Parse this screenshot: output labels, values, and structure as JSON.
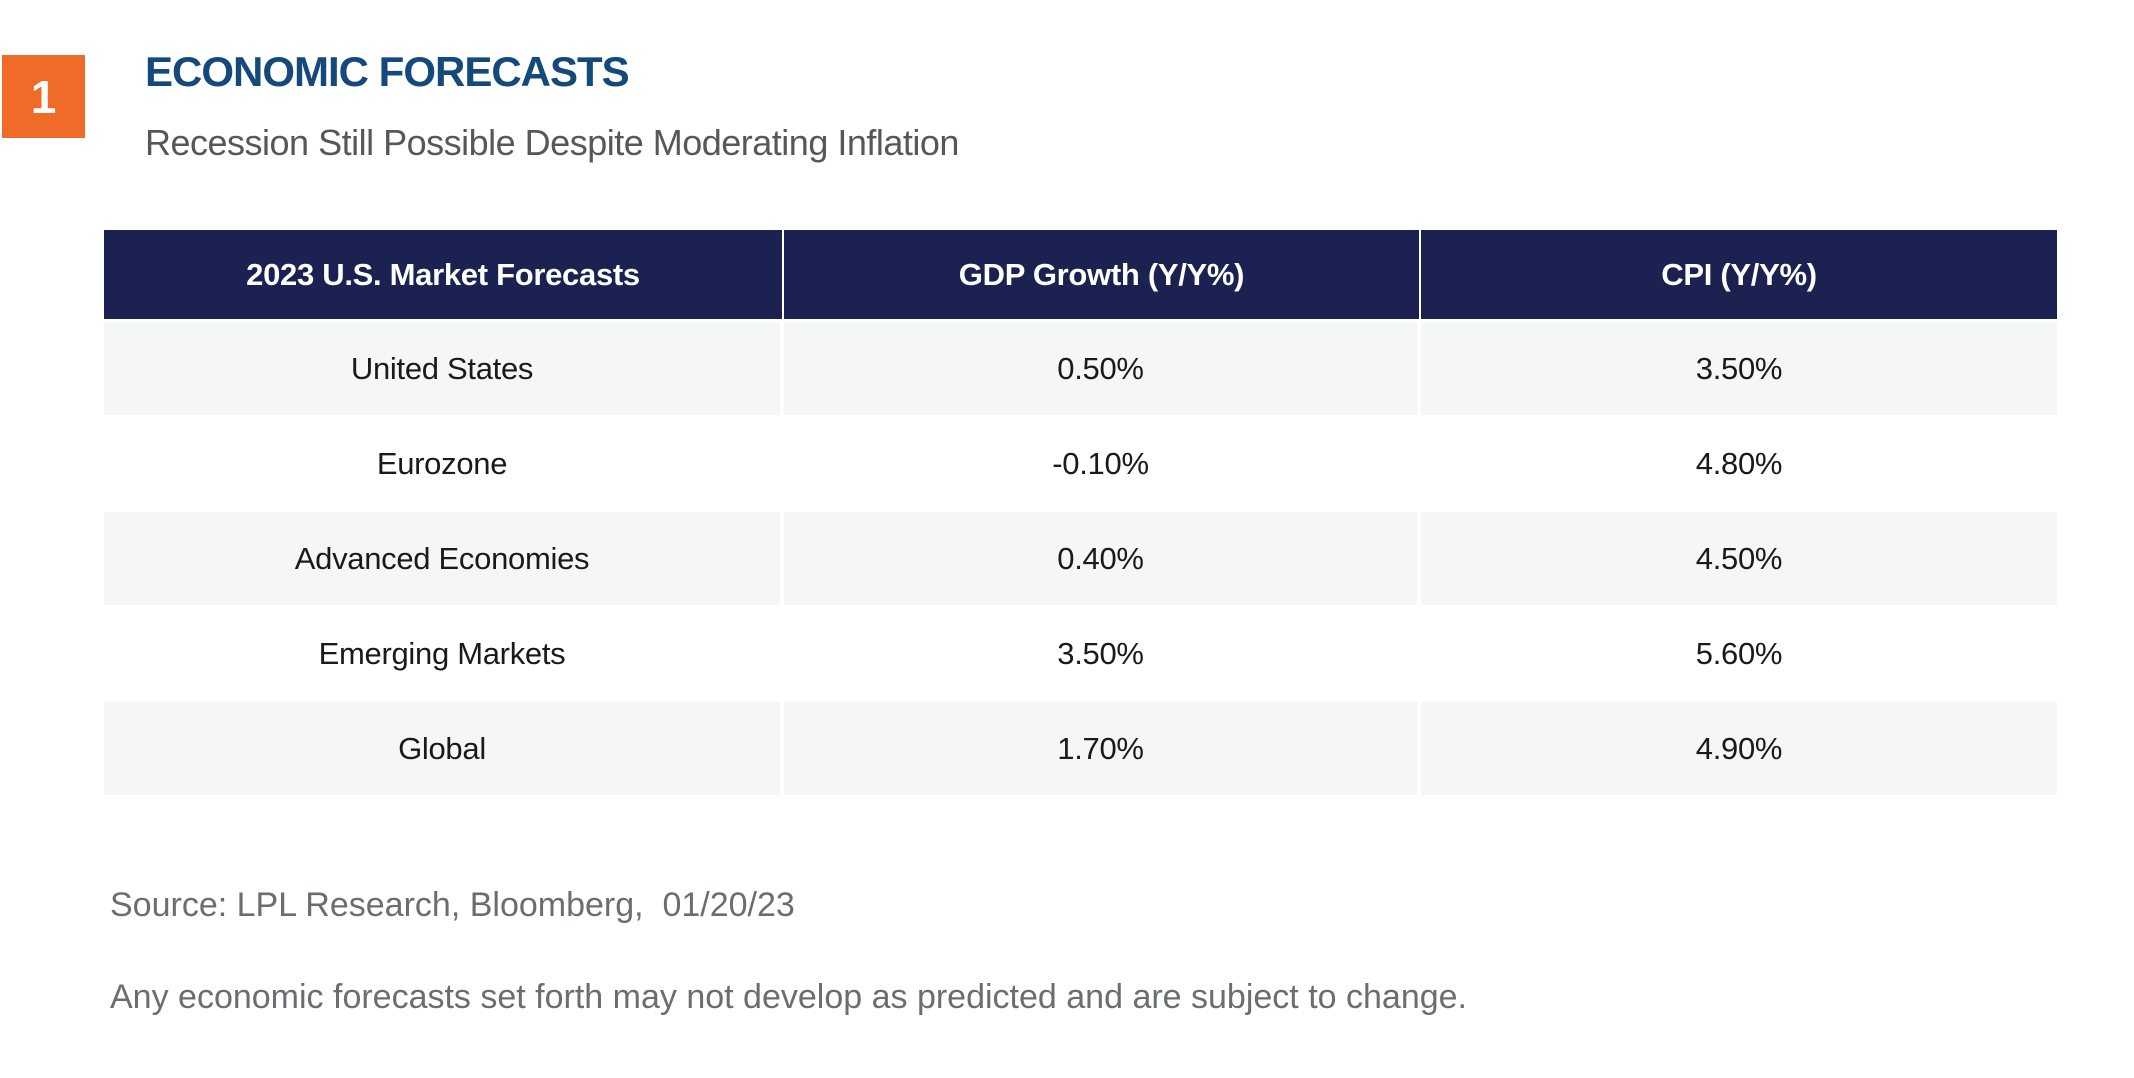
{
  "badge": {
    "number": "1"
  },
  "header": {
    "title": "ECONOMIC FORECASTS",
    "subtitle": "Recession Still Possible Despite Moderating Inflation"
  },
  "chart_data": {
    "type": "table",
    "title": "ECONOMIC FORECASTS",
    "subtitle": "Recession Still Possible Despite Moderating Inflation",
    "columns": [
      "2023 U.S. Market Forecasts",
      "GDP Growth (Y/Y%)",
      "CPI (Y/Y%)"
    ],
    "rows": [
      [
        "United States",
        "0.50%",
        "3.50%"
      ],
      [
        "Eurozone",
        "-0.10%",
        "4.80%"
      ],
      [
        "Advanced Economies",
        "0.40%",
        "4.50%"
      ],
      [
        "Emerging Markets",
        "3.50%",
        "5.60%"
      ],
      [
        "Global",
        "1.70%",
        "4.90%"
      ]
    ],
    "gdp_growth_values_pct": [
      0.5,
      -0.1,
      0.4,
      3.5,
      1.7
    ],
    "cpi_values_pct": [
      3.5,
      4.8,
      4.5,
      5.6,
      4.9
    ],
    "legend": null,
    "grid": false
  },
  "footer": {
    "source": "Source: LPL Research, Bloomberg,  01/20/23",
    "disclaimer": "Any economic forecasts set forth may not develop as predicted and are subject to change."
  },
  "colors": {
    "badge_orange": "#F16B28",
    "title_blue": "#14497B",
    "subtitle_gray": "#54585C",
    "table_header_navy": "#1B2150",
    "row_stripe_gray": "#F4F6F8",
    "cell_text": "#1A1A1A",
    "footer_gray": "#6A6E71"
  }
}
